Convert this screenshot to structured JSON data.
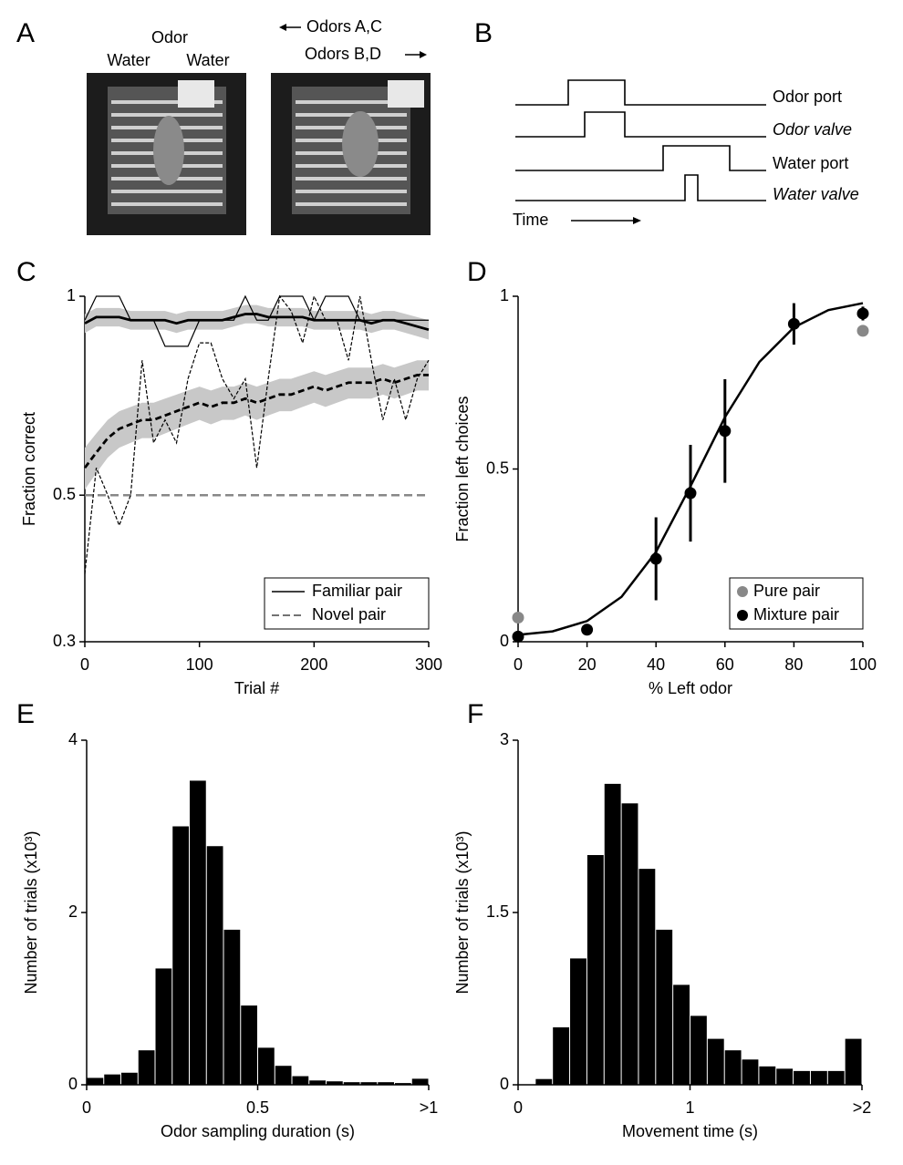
{
  "panel_labels": [
    "A",
    "B",
    "C",
    "D",
    "E",
    "F"
  ],
  "panel_a": {
    "odor": "Odor",
    "water_left": "Water",
    "water_right": "Water",
    "odors_left": "Odors A,C",
    "odors_right": "Odors B,D"
  },
  "panel_b": {
    "traces": [
      "Odor port",
      "Odor valve",
      "Water port",
      "Water valve"
    ],
    "time": "Time"
  },
  "chart_data": [
    {
      "type": "line",
      "x_label": "Trial #",
      "y_label": "Fraction correct",
      "xlim": [
        0,
        300
      ],
      "ylim": [
        0.3,
        1
      ],
      "y_scale": "log",
      "xticks": [
        0,
        100,
        200,
        300
      ],
      "yticks": [
        0.3,
        0.5,
        1
      ],
      "reference_line": 0.5,
      "reference_color": "#888888",
      "band_color": "#c8c8c8",
      "legend": "lower right",
      "x": [
        0,
        10,
        20,
        30,
        40,
        50,
        60,
        70,
        80,
        90,
        100,
        110,
        120,
        130,
        140,
        150,
        160,
        170,
        180,
        190,
        200,
        210,
        220,
        230,
        240,
        250,
        260,
        270,
        280,
        290,
        300
      ],
      "series": [
        {
          "name": "Familiar pair",
          "color": "#000000",
          "style": "solid",
          "values": [
            0.91,
            0.93,
            0.93,
            0.93,
            0.92,
            0.92,
            0.92,
            0.92,
            0.91,
            0.92,
            0.92,
            0.92,
            0.92,
            0.93,
            0.94,
            0.94,
            0.93,
            0.93,
            0.93,
            0.93,
            0.92,
            0.92,
            0.92,
            0.92,
            0.92,
            0.91,
            0.92,
            0.92,
            0.91,
            0.9,
            0.89
          ],
          "error": [
            0.03,
            0.03,
            0.03,
            0.03,
            0.03,
            0.03,
            0.03,
            0.03,
            0.03,
            0.03,
            0.03,
            0.03,
            0.03,
            0.03,
            0.03,
            0.03,
            0.03,
            0.03,
            0.03,
            0.03,
            0.03,
            0.03,
            0.03,
            0.03,
            0.03,
            0.03,
            0.03,
            0.03,
            0.03,
            0.03,
            0.03
          ]
        },
        {
          "name": "Novel pair",
          "color": "#000000",
          "style": "dashed",
          "values": [
            0.55,
            0.58,
            0.61,
            0.63,
            0.64,
            0.65,
            0.65,
            0.66,
            0.67,
            0.68,
            0.69,
            0.68,
            0.69,
            0.69,
            0.7,
            0.69,
            0.7,
            0.71,
            0.71,
            0.72,
            0.73,
            0.72,
            0.73,
            0.74,
            0.74,
            0.74,
            0.75,
            0.74,
            0.75,
            0.76,
            0.76
          ],
          "error": [
            0.04,
            0.04,
            0.04,
            0.04,
            0.04,
            0.04,
            0.04,
            0.04,
            0.04,
            0.04,
            0.04,
            0.04,
            0.04,
            0.04,
            0.04,
            0.04,
            0.04,
            0.04,
            0.04,
            0.04,
            0.04,
            0.04,
            0.04,
            0.04,
            0.04,
            0.04,
            0.04,
            0.04,
            0.04,
            0.04,
            0.04
          ]
        },
        {
          "color": "#000000",
          "style": "thin-solid",
          "values": [
            0.92,
            1,
            1,
            1,
            0.92,
            0.92,
            0.92,
            0.84,
            0.84,
            0.84,
            0.92,
            0.92,
            0.92,
            0.92,
            1,
            0.92,
            0.92,
            1,
            1,
            1,
            0.92,
            1,
            1,
            1,
            0.92,
            0.92,
            0.92,
            0.92,
            0.92,
            0.92,
            0.92
          ]
        },
        {
          "color": "#000000",
          "style": "thin-dashed",
          "values": [
            0.38,
            0.55,
            0.5,
            0.45,
            0.5,
            0.8,
            0.6,
            0.65,
            0.6,
            0.75,
            0.85,
            0.85,
            0.75,
            0.7,
            0.75,
            0.55,
            0.75,
            1,
            0.95,
            0.85,
            1,
            0.92,
            0.92,
            0.8,
            1,
            0.8,
            0.65,
            0.75,
            0.65,
            0.75,
            0.8
          ]
        }
      ]
    },
    {
      "type": "scatter",
      "x_label": "% Left odor",
      "y_label": "Fraction left choices",
      "xlim": [
        0,
        100
      ],
      "ylim": [
        0,
        1
      ],
      "xticks": [
        0,
        20,
        40,
        60,
        80,
        100
      ],
      "yticks": [
        0,
        0.5,
        1
      ],
      "legend": "lower right",
      "fit": {
        "color": "#000000",
        "x": [
          0,
          10,
          20,
          30,
          40,
          50,
          60,
          70,
          80,
          90,
          100
        ],
        "values": [
          0.02,
          0.03,
          0.06,
          0.13,
          0.26,
          0.45,
          0.65,
          0.81,
          0.91,
          0.96,
          0.98
        ]
      },
      "series": [
        {
          "name": "Pure pair",
          "color": "#888888",
          "x": [
            0,
            100
          ],
          "values": [
            0.07,
            0.9
          ]
        },
        {
          "name": "Mixture pair",
          "color": "#000000",
          "x": [
            0,
            20,
            40,
            50,
            60,
            80,
            100
          ],
          "values": [
            0.015,
            0.035,
            0.24,
            0.43,
            0.61,
            0.92,
            0.95
          ],
          "error": [
            0.005,
            0.015,
            0.12,
            0.14,
            0.15,
            0.06,
            0.02
          ]
        }
      ]
    },
    {
      "type": "histogram",
      "x_label": "Odor sampling duration (s)",
      "y_label": "Number of trials (x10³)",
      "color": "#000000",
      "xlim": [
        0,
        1
      ],
      "ylim": [
        0,
        4
      ],
      "xticks": [
        0,
        0.5,
        {
          "value": 1,
          "label": ">1"
        }
      ],
      "yticks": [
        0,
        2,
        4
      ],
      "bins": [
        0,
        0.05,
        0.1,
        0.15,
        0.2,
        0.25,
        0.3,
        0.35,
        0.4,
        0.45,
        0.5,
        0.55,
        0.6,
        0.65,
        0.7,
        0.75,
        0.8,
        0.85,
        0.9,
        0.95,
        1
      ],
      "values": [
        0.08,
        0.12,
        0.14,
        0.4,
        1.35,
        3.0,
        3.53,
        2.77,
        1.8,
        0.92,
        0.43,
        0.22,
        0.1,
        0.05,
        0.04,
        0.03,
        0.03,
        0.03,
        0.02,
        0.07
      ]
    },
    {
      "type": "histogram",
      "x_label": "Movement time (s)",
      "y_label": "Number of trials (x10³)",
      "color": "#000000",
      "xlim": [
        0,
        2
      ],
      "ylim": [
        0,
        3
      ],
      "xticks": [
        0,
        1,
        {
          "value": 2,
          "label": ">2"
        }
      ],
      "yticks": [
        0,
        1.5,
        3
      ],
      "bins": [
        0,
        0.1,
        0.2,
        0.3,
        0.4,
        0.5,
        0.6,
        0.7,
        0.8,
        0.9,
        1,
        1.1,
        1.2,
        1.3,
        1.4,
        1.5,
        1.6,
        1.7,
        1.8,
        1.9,
        2
      ],
      "values": [
        0,
        0.05,
        0.5,
        1.1,
        2.0,
        2.62,
        2.45,
        1.88,
        1.35,
        0.87,
        0.6,
        0.4,
        0.3,
        0.22,
        0.16,
        0.14,
        0.12,
        0.12,
        0.12,
        0.4
      ]
    }
  ]
}
